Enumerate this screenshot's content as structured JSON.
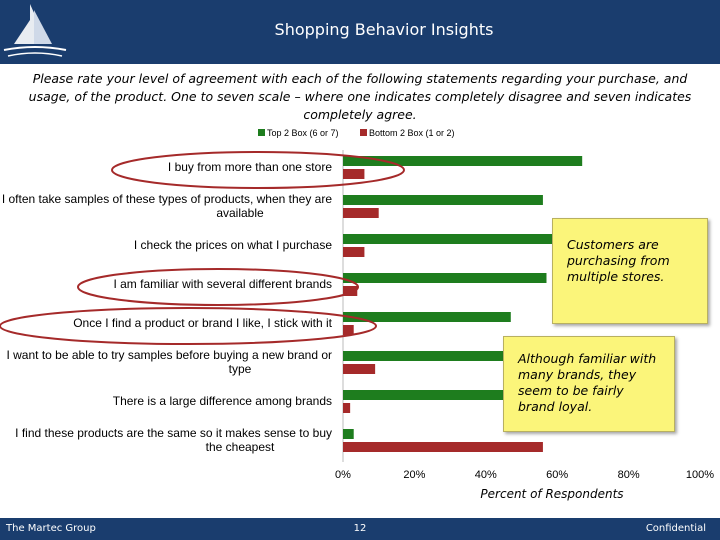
{
  "header": {
    "title": "Shopping Behavior Insights"
  },
  "subtitle": "Please rate your level of agreement with each of the following statements regarding your purchase, and usage, of the product. One to seven scale – where one indicates completely disagree and seven indicates completely agree.",
  "chart_data": {
    "type": "bar",
    "orientation": "horizontal",
    "categories": [
      "I buy from more than one store",
      "I often take samples of these types of products, when they are available",
      "I check the prices on what I purchase",
      "I am familiar with several different brands",
      "Once I find a product or brand I like, I stick with it",
      "I want to be able to try samples before buying a new brand or type",
      "There is a large difference among brands",
      "I find these products are the same so it makes sense to buy the cheapest"
    ],
    "category_lines": [
      [
        "I buy from more than one store"
      ],
      [
        "I often take samples of these types of products, when they are",
        "available"
      ],
      [
        "I check the prices on what I purchase"
      ],
      [
        "I am familiar with several different brands"
      ],
      [
        "Once I find a product or brand I like, I stick with it"
      ],
      [
        "I want to be able to try samples before buying a new brand or",
        "type"
      ],
      [
        "There is a large difference among brands"
      ],
      [
        "I find these products are the same so it makes sense to buy",
        "the cheapest"
      ]
    ],
    "series": [
      {
        "name": "Top 2 Box (6 or 7)",
        "color": "#1e7d1e",
        "values": [
          67,
          56,
          59,
          57,
          47,
          47,
          54,
          3
        ]
      },
      {
        "name": "Bottom 2 Box (1 or 2)",
        "color": "#a52a2a",
        "values": [
          6,
          10,
          6,
          4,
          3,
          9,
          2,
          56
        ]
      }
    ],
    "xlim": [
      0,
      100
    ],
    "xticks": [
      "0%",
      "20%",
      "40%",
      "60%",
      "80%",
      "100%"
    ],
    "xlabel": "Percent of Respondents",
    "legend_position": "top",
    "highlighted_categories": [
      0,
      3,
      4
    ]
  },
  "callouts": [
    {
      "text": "Customers are purchasing from multiple stores."
    },
    {
      "text": "Although familiar with many brands, they seem to be fairly brand loyal."
    }
  ],
  "footer": {
    "company": "The Martec Group",
    "page": "12",
    "confidential": "Confidential"
  },
  "colors": {
    "header_bg": "#1a3d6e",
    "circle": "#a52a2a",
    "callout_bg": "#fbf57a"
  }
}
